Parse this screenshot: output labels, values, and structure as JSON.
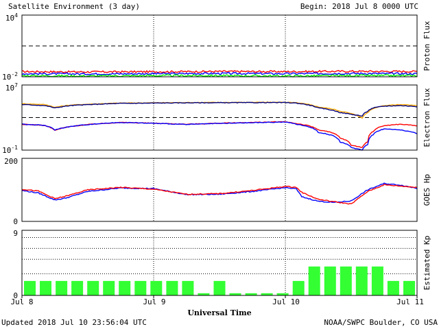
{
  "header": {
    "title": "Satellite Environment (3 day)",
    "begin": "Begin:  2018 Jul 8 0000 UTC"
  },
  "footer": {
    "updated": "Updated 2018 Jul 10 23:56:04 UTC",
    "credit": "NOAA/SWPC Boulder, CO USA"
  },
  "x_axis": {
    "label": "Universal Time",
    "ticks": [
      "Jul 8",
      "Jul 9",
      "Jul 10",
      "Jul 11"
    ]
  },
  "colors": {
    "red": "#ff0000",
    "blue": "#0000ff",
    "green": "#00ee00",
    "orange": "#ffaa00",
    "navy": "#000080",
    "kp_bar": "#33ff33"
  },
  "chart_data": [
    {
      "type": "line",
      "name": "proton-flux",
      "ylabel": "Proton Flux",
      "yscale": "log",
      "ylim_exp": [
        -2,
        4
      ],
      "tick_labels": [
        {
          "base": "10",
          "exp": "4"
        },
        {
          "base": "10",
          "exp": "-2"
        }
      ],
      "threshold": 10,
      "x": [
        0,
        12,
        24,
        36,
        48,
        60,
        72
      ],
      "series": [
        {
          "color": "red",
          "values": [
            0.032,
            0.03,
            0.031,
            0.033,
            0.032,
            0.034,
            0.033
          ]
        },
        {
          "color": "blue",
          "values": [
            0.02,
            0.019,
            0.02,
            0.021,
            0.02,
            0.021,
            0.02
          ]
        },
        {
          "color": "green",
          "values": [
            0.013,
            0.012,
            0.013,
            0.013,
            0.012,
            0.013,
            0.013
          ]
        }
      ]
    },
    {
      "type": "line",
      "name": "electron-flux",
      "ylabel": "Electron Flux",
      "yscale": "log",
      "ylim_exp": [
        -1,
        7
      ],
      "tick_labels": [
        {
          "base": "10",
          "exp": "7"
        },
        {
          "base": "10",
          "exp": "-1"
        }
      ],
      "threshold": 1000,
      "x": [
        0,
        4,
        6,
        9,
        18,
        30,
        48,
        50,
        54,
        58,
        60,
        62,
        63,
        64,
        66,
        69,
        72
      ],
      "series": [
        {
          "color": "orange",
          "values": [
            50000,
            40000,
            18000,
            35000,
            60000,
            70000,
            75000,
            65000,
            20000,
            6000,
            3000,
            800,
            4000,
            12000,
            30000,
            40000,
            30000
          ]
        },
        {
          "color": "navy",
          "values": [
            40000,
            30000,
            15000,
            30000,
            55000,
            65000,
            70000,
            60000,
            15000,
            4000,
            2500,
            1500,
            6000,
            15000,
            25000,
            30000,
            22000
          ]
        },
        {
          "color": "red",
          "values": [
            150,
            110,
            25,
            80,
            250,
            150,
            300,
            180,
            30,
            3,
            0.4,
            0.2,
            1,
            20,
            100,
            150,
            100
          ]
        },
        {
          "color": "blue",
          "values": [
            150,
            110,
            30,
            80,
            250,
            140,
            280,
            150,
            15,
            1,
            0.2,
            0.1,
            0.5,
            8,
            40,
            30,
            10
          ]
        }
      ]
    },
    {
      "type": "line",
      "name": "goes-hp",
      "ylabel": "GOES Hp",
      "ylim": [
        0,
        200
      ],
      "tick_labels": [
        "200",
        "0"
      ],
      "x": [
        0,
        3,
        6,
        8,
        12,
        18,
        24,
        30,
        36,
        42,
        48,
        50,
        51,
        54,
        57,
        60,
        63,
        66,
        69,
        72
      ],
      "series": [
        {
          "color": "blue",
          "values": [
            98,
            90,
            68,
            74,
            95,
            106,
            104,
            85,
            86,
            95,
            107,
            103,
            78,
            64,
            60,
            65,
            100,
            120,
            115,
            105
          ]
        },
        {
          "color": "red",
          "values": [
            102,
            96,
            72,
            80,
            100,
            108,
            102,
            86,
            88,
            98,
            111,
            108,
            92,
            70,
            62,
            55,
            95,
            116,
            112,
            108
          ]
        }
      ]
    },
    {
      "type": "bar",
      "name": "estimated-kp",
      "ylabel": "Estimated Kp",
      "ylim": [
        0,
        9
      ],
      "tick_labels": [
        "9",
        "0"
      ],
      "gridlines": [
        3,
        5,
        6.5,
        8
      ],
      "values": [
        2,
        2,
        2,
        2,
        2,
        2,
        2,
        2,
        2,
        2,
        2,
        0.3,
        2,
        0.3,
        0.3,
        0.3,
        0.3,
        2,
        4,
        4,
        4,
        4,
        4,
        2,
        2
      ]
    }
  ]
}
